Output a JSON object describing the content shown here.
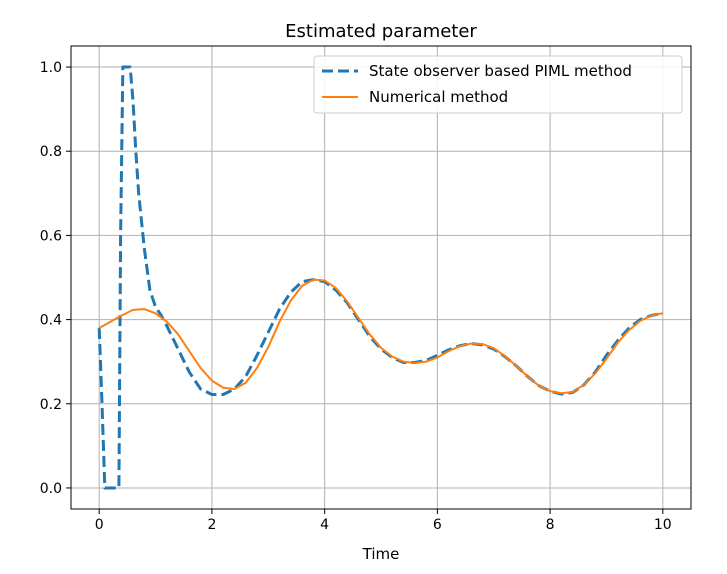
{
  "chart_data": {
    "type": "line",
    "title": "Estimated parameter",
    "xlabel": "Time",
    "ylabel": "",
    "xlim": [
      -0.5,
      10.5
    ],
    "ylim": [
      -0.05,
      1.05
    ],
    "xticks": [
      0,
      2,
      4,
      6,
      8,
      10
    ],
    "yticks": [
      0.0,
      0.2,
      0.4,
      0.6,
      0.8,
      1.0
    ],
    "xtick_labels": [
      "0",
      "2",
      "4",
      "6",
      "8",
      "10"
    ],
    "ytick_labels": [
      "0.0",
      "0.2",
      "0.4",
      "0.6",
      "0.8",
      "1.0"
    ],
    "grid": true,
    "legend_position": "top-right",
    "series": [
      {
        "name": "State observer based PIML method",
        "color": "#1f77b4",
        "style": "dashed",
        "x": [
          0,
          0.05,
          0.1,
          0.15,
          0.2,
          0.25,
          0.3,
          0.35,
          0.38,
          0.42,
          0.5,
          0.55,
          0.6,
          0.65,
          0.7,
          0.8,
          0.9,
          1.0,
          1.1,
          1.2,
          1.4,
          1.6,
          1.8,
          2.0,
          2.2,
          2.4,
          2.6,
          2.8,
          3.0,
          3.2,
          3.4,
          3.6,
          3.8,
          4.0,
          4.2,
          4.4,
          4.6,
          4.8,
          5.0,
          5.2,
          5.4,
          5.6,
          5.8,
          6.0,
          6.2,
          6.4,
          6.6,
          6.8,
          7.0,
          7.2,
          7.4,
          7.6,
          7.8,
          8.0,
          8.2,
          8.4,
          8.6,
          8.8,
          9.0,
          9.2,
          9.4,
          9.6,
          9.8,
          10.0
        ],
        "y": [
          0.38,
          0.2,
          0.0,
          0.0,
          0.0,
          0.0,
          0.0,
          0.0,
          0.6,
          1.0,
          1.0,
          1.0,
          0.92,
          0.8,
          0.7,
          0.57,
          0.47,
          0.43,
          0.41,
          0.385,
          0.33,
          0.275,
          0.235,
          0.222,
          0.222,
          0.235,
          0.265,
          0.315,
          0.37,
          0.425,
          0.465,
          0.49,
          0.495,
          0.49,
          0.47,
          0.44,
          0.4,
          0.36,
          0.33,
          0.31,
          0.298,
          0.298,
          0.303,
          0.315,
          0.328,
          0.338,
          0.343,
          0.34,
          0.33,
          0.312,
          0.29,
          0.265,
          0.243,
          0.23,
          0.223,
          0.227,
          0.245,
          0.275,
          0.315,
          0.35,
          0.38,
          0.4,
          0.41,
          0.415
        ]
      },
      {
        "name": "Numerical method",
        "color": "#ff7f0e",
        "style": "solid",
        "x": [
          0,
          0.2,
          0.4,
          0.6,
          0.8,
          1.0,
          1.2,
          1.4,
          1.6,
          1.8,
          2.0,
          2.2,
          2.4,
          2.6,
          2.8,
          3.0,
          3.2,
          3.4,
          3.6,
          3.8,
          4.0,
          4.2,
          4.4,
          4.6,
          4.8,
          5.0,
          5.2,
          5.4,
          5.6,
          5.8,
          6.0,
          6.2,
          6.4,
          6.6,
          6.8,
          7.0,
          7.2,
          7.4,
          7.6,
          7.8,
          8.0,
          8.2,
          8.4,
          8.6,
          8.8,
          9.0,
          9.2,
          9.4,
          9.6,
          9.8,
          10.0
        ],
        "y": [
          0.38,
          0.395,
          0.41,
          0.423,
          0.425,
          0.415,
          0.395,
          0.365,
          0.325,
          0.285,
          0.255,
          0.238,
          0.235,
          0.25,
          0.285,
          0.335,
          0.395,
          0.445,
          0.48,
          0.495,
          0.493,
          0.475,
          0.443,
          0.404,
          0.365,
          0.333,
          0.312,
          0.3,
          0.297,
          0.3,
          0.31,
          0.325,
          0.337,
          0.343,
          0.342,
          0.332,
          0.313,
          0.29,
          0.265,
          0.243,
          0.23,
          0.225,
          0.228,
          0.245,
          0.272,
          0.307,
          0.345,
          0.375,
          0.397,
          0.41,
          0.415
        ]
      }
    ]
  }
}
